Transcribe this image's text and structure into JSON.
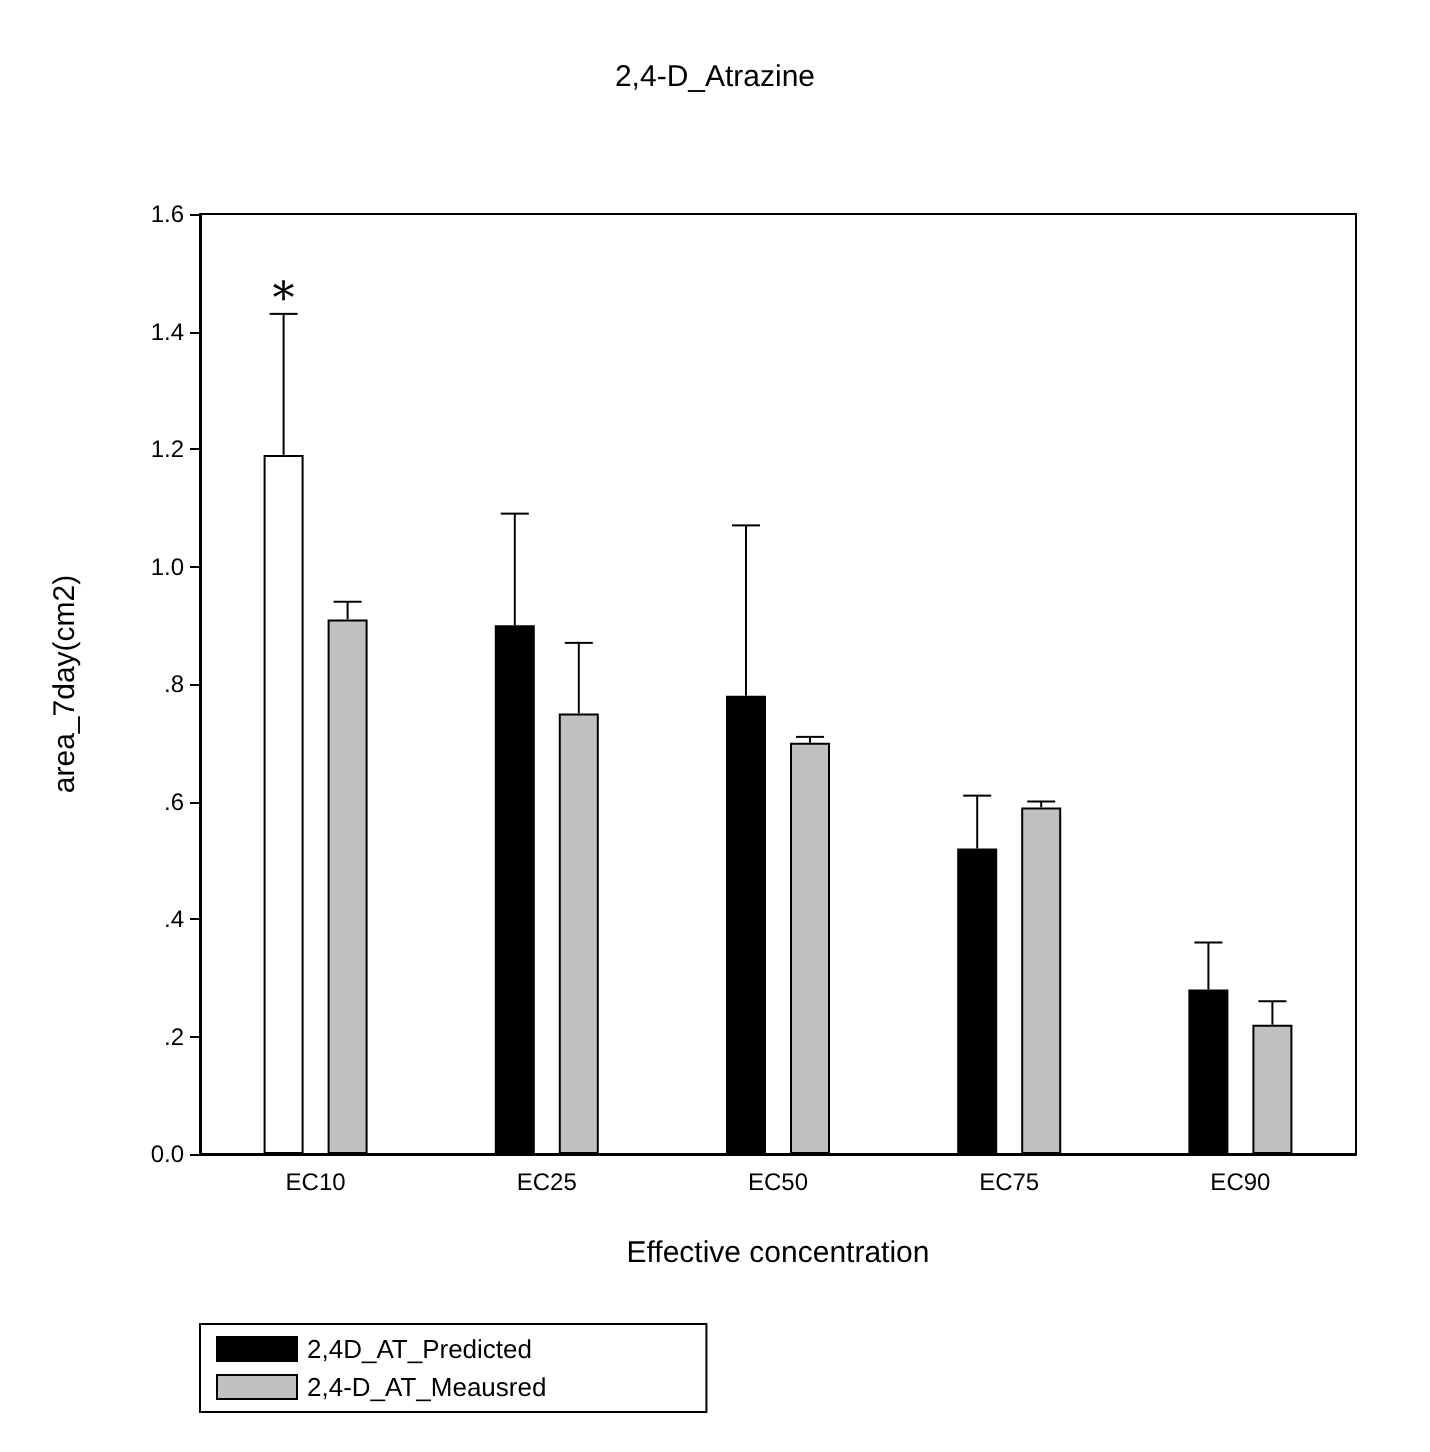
{
  "chart_data": {
    "type": "bar",
    "title": "2,4-D_Atrazine",
    "xlabel": "Effective concentration",
    "ylabel": "area_7day(cm2)",
    "categories": [
      "EC10",
      "EC25",
      "EC50",
      "EC75",
      "EC90"
    ],
    "series": [
      {
        "name": "2,4D_AT_Predicted",
        "color": "#000000",
        "colors": [
          "#ffffff",
          "#000000",
          "#000000",
          "#000000",
          "#000000"
        ],
        "values": [
          1.19,
          0.9,
          0.78,
          0.52,
          0.28
        ],
        "errors": [
          [
            1.19,
            1.43
          ],
          [
            0.9,
            1.09
          ],
          [
            0.78,
            1.07
          ],
          [
            0.52,
            0.61
          ],
          [
            0.28,
            0.36
          ]
        ]
      },
      {
        "name": "2,4-D_AT_Meausred",
        "color": "#c0c0c0",
        "values": [
          0.91,
          0.75,
          0.7,
          0.59,
          0.22
        ],
        "errors": [
          [
            0.91,
            0.94
          ],
          [
            0.75,
            0.87
          ],
          [
            0.7,
            0.71
          ],
          [
            0.59,
            0.6
          ],
          [
            0.22,
            0.26
          ]
        ]
      }
    ],
    "annotations": [
      "*"
    ],
    "ylim": [
      0,
      1.6
    ],
    "yticks": [
      {
        "value": 0,
        "label": "0.0"
      },
      {
        "value": 0.2,
        "label": ".2"
      },
      {
        "value": 0.4,
        "label": ".4"
      },
      {
        "value": 0.6,
        "label": ".6"
      },
      {
        "value": 0.8,
        "label": ".8"
      },
      {
        "value": 1.0,
        "label": "1.0"
      },
      {
        "value": 1.2,
        "label": "1.2"
      },
      {
        "value": 1.4,
        "label": "1.4"
      },
      {
        "value": 1.6,
        "label": "1.6"
      }
    ],
    "grid": false,
    "legend": "bottom left"
  }
}
